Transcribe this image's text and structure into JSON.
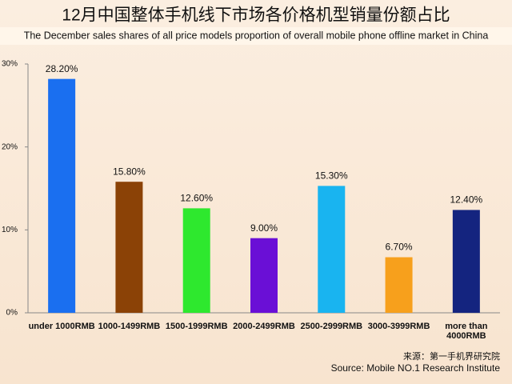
{
  "chart_data": {
    "type": "bar",
    "title": "12月中国整体手机线下市场各价格机型销量份额占比",
    "subtitle": "The December sales shares of all price models proportion of overall mobile phone offline market in China",
    "categories": [
      "under 1000RMB",
      "1000-1499RMB",
      "1500-1999RMB",
      "2000-2499RMB",
      "2500-2999RMB",
      "3000-3999RMB",
      "more than 4000RMB"
    ],
    "values": [
      28.2,
      15.8,
      12.6,
      9.0,
      15.3,
      6.7,
      12.4
    ],
    "value_labels": [
      "28.20%",
      "15.80%",
      "12.60%",
      "9.00%",
      "15.30%",
      "6.70%",
      "12.40%"
    ],
    "colors": [
      "#1a6ff0",
      "#8b4206",
      "#2ee82e",
      "#6a0fd6",
      "#19b4f0",
      "#f7a01c",
      "#14247f"
    ],
    "ylim": [
      0,
      30
    ],
    "yticks": [
      {
        "value": 0,
        "label": "0%"
      },
      {
        "value": 10,
        "label": "10%"
      },
      {
        "value": 20,
        "label": "20%"
      },
      {
        "value": 30,
        "label": "30%"
      }
    ],
    "grid": false,
    "source": [
      "来源：第一手机界研究院",
      "Source: Mobile NO.1 Research Institute"
    ]
  }
}
